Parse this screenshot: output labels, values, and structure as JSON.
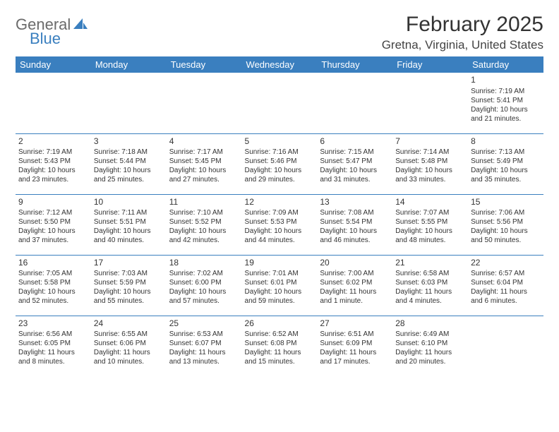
{
  "logo": {
    "text1": "General",
    "text2": "Blue",
    "icon_color": "#3a7fbf"
  },
  "title": "February 2025",
  "location": "Gretna, Virginia, United States",
  "header_bg": "#3a7fbf",
  "header_fg": "#ffffff",
  "divider_color": "#3a7fbf",
  "day_headers": [
    "Sunday",
    "Monday",
    "Tuesday",
    "Wednesday",
    "Thursday",
    "Friday",
    "Saturday"
  ],
  "weeks": [
    [
      null,
      null,
      null,
      null,
      null,
      null,
      {
        "n": "1",
        "sr": "7:19 AM",
        "ss": "5:41 PM",
        "dl": "10 hours and 21 minutes."
      }
    ],
    [
      {
        "n": "2",
        "sr": "7:19 AM",
        "ss": "5:43 PM",
        "dl": "10 hours and 23 minutes."
      },
      {
        "n": "3",
        "sr": "7:18 AM",
        "ss": "5:44 PM",
        "dl": "10 hours and 25 minutes."
      },
      {
        "n": "4",
        "sr": "7:17 AM",
        "ss": "5:45 PM",
        "dl": "10 hours and 27 minutes."
      },
      {
        "n": "5",
        "sr": "7:16 AM",
        "ss": "5:46 PM",
        "dl": "10 hours and 29 minutes."
      },
      {
        "n": "6",
        "sr": "7:15 AM",
        "ss": "5:47 PM",
        "dl": "10 hours and 31 minutes."
      },
      {
        "n": "7",
        "sr": "7:14 AM",
        "ss": "5:48 PM",
        "dl": "10 hours and 33 minutes."
      },
      {
        "n": "8",
        "sr": "7:13 AM",
        "ss": "5:49 PM",
        "dl": "10 hours and 35 minutes."
      }
    ],
    [
      {
        "n": "9",
        "sr": "7:12 AM",
        "ss": "5:50 PM",
        "dl": "10 hours and 37 minutes."
      },
      {
        "n": "10",
        "sr": "7:11 AM",
        "ss": "5:51 PM",
        "dl": "10 hours and 40 minutes."
      },
      {
        "n": "11",
        "sr": "7:10 AM",
        "ss": "5:52 PM",
        "dl": "10 hours and 42 minutes."
      },
      {
        "n": "12",
        "sr": "7:09 AM",
        "ss": "5:53 PM",
        "dl": "10 hours and 44 minutes."
      },
      {
        "n": "13",
        "sr": "7:08 AM",
        "ss": "5:54 PM",
        "dl": "10 hours and 46 minutes."
      },
      {
        "n": "14",
        "sr": "7:07 AM",
        "ss": "5:55 PM",
        "dl": "10 hours and 48 minutes."
      },
      {
        "n": "15",
        "sr": "7:06 AM",
        "ss": "5:56 PM",
        "dl": "10 hours and 50 minutes."
      }
    ],
    [
      {
        "n": "16",
        "sr": "7:05 AM",
        "ss": "5:58 PM",
        "dl": "10 hours and 52 minutes."
      },
      {
        "n": "17",
        "sr": "7:03 AM",
        "ss": "5:59 PM",
        "dl": "10 hours and 55 minutes."
      },
      {
        "n": "18",
        "sr": "7:02 AM",
        "ss": "6:00 PM",
        "dl": "10 hours and 57 minutes."
      },
      {
        "n": "19",
        "sr": "7:01 AM",
        "ss": "6:01 PM",
        "dl": "10 hours and 59 minutes."
      },
      {
        "n": "20",
        "sr": "7:00 AM",
        "ss": "6:02 PM",
        "dl": "11 hours and 1 minute."
      },
      {
        "n": "21",
        "sr": "6:58 AM",
        "ss": "6:03 PM",
        "dl": "11 hours and 4 minutes."
      },
      {
        "n": "22",
        "sr": "6:57 AM",
        "ss": "6:04 PM",
        "dl": "11 hours and 6 minutes."
      }
    ],
    [
      {
        "n": "23",
        "sr": "6:56 AM",
        "ss": "6:05 PM",
        "dl": "11 hours and 8 minutes."
      },
      {
        "n": "24",
        "sr": "6:55 AM",
        "ss": "6:06 PM",
        "dl": "11 hours and 10 minutes."
      },
      {
        "n": "25",
        "sr": "6:53 AM",
        "ss": "6:07 PM",
        "dl": "11 hours and 13 minutes."
      },
      {
        "n": "26",
        "sr": "6:52 AM",
        "ss": "6:08 PM",
        "dl": "11 hours and 15 minutes."
      },
      {
        "n": "27",
        "sr": "6:51 AM",
        "ss": "6:09 PM",
        "dl": "11 hours and 17 minutes."
      },
      {
        "n": "28",
        "sr": "6:49 AM",
        "ss": "6:10 PM",
        "dl": "11 hours and 20 minutes."
      },
      null
    ]
  ],
  "labels": {
    "sunrise": "Sunrise:",
    "sunset": "Sunset:",
    "daylight": "Daylight:"
  }
}
